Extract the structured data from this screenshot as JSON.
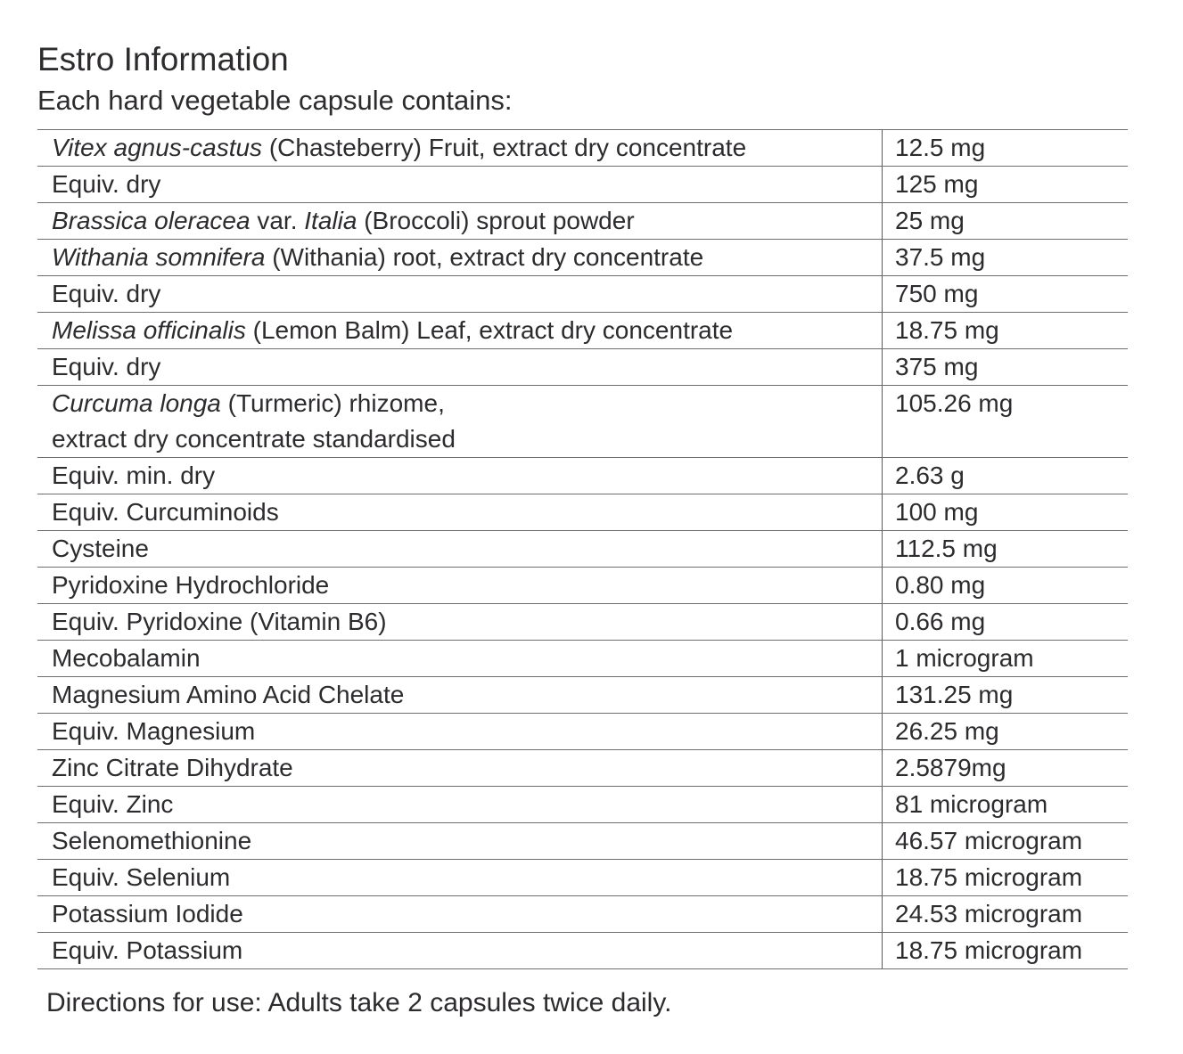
{
  "document": {
    "title": "Estro Information",
    "subtitle": "Each hard vegetable capsule contains:",
    "directions": "Directions for use: Adults take 2 capsules twice daily."
  },
  "colors": {
    "text": "#2d2b2e",
    "rule": "#6e6e6e",
    "background": "#ffffff"
  },
  "table": {
    "rows": [
      {
        "name_parts": [
          {
            "text": "Vitex agnus-castus",
            "italic": true
          },
          {
            "text": " (Chasteberry) Fruit, extract dry concentrate",
            "italic": false
          }
        ],
        "amount": "12.5 mg"
      },
      {
        "name_parts": [
          {
            "text": "Equiv. dry",
            "italic": false
          }
        ],
        "amount": "125 mg"
      },
      {
        "name_parts": [
          {
            "text": "Brassica oleracea",
            "italic": true
          },
          {
            "text": " var. ",
            "italic": false
          },
          {
            "text": "Italia",
            "italic": true
          },
          {
            "text": " (Broccoli) sprout powder",
            "italic": false
          }
        ],
        "amount": "25 mg"
      },
      {
        "name_parts": [
          {
            "text": "Withania somnifera",
            "italic": true
          },
          {
            "text": " (Withania) root, extract dry concentrate",
            "italic": false
          }
        ],
        "amount": "37.5 mg"
      },
      {
        "name_parts": [
          {
            "text": "Equiv. dry",
            "italic": false
          }
        ],
        "amount": "750 mg"
      },
      {
        "name_parts": [
          {
            "text": "Melissa officinalis",
            "italic": true
          },
          {
            "text": " (Lemon Balm) Leaf, extract dry concentrate",
            "italic": false
          }
        ],
        "amount": "18.75 mg"
      },
      {
        "name_parts": [
          {
            "text": "Equiv. dry",
            "italic": false
          }
        ],
        "amount": "375 mg"
      },
      {
        "name_parts": [
          {
            "text": "Curcuma longa",
            "italic": true
          },
          {
            "text": " (Turmeric) rhizome,",
            "italic": false
          },
          {
            "break": true
          },
          {
            "text": "extract dry concentrate standardised",
            "italic": false
          }
        ],
        "amount": "105.26 mg",
        "tall": true
      },
      {
        "name_parts": [
          {
            "text": "Equiv. min. dry",
            "italic": false
          }
        ],
        "amount": "2.63 g"
      },
      {
        "name_parts": [
          {
            "text": "Equiv. Curcuminoids",
            "italic": false
          }
        ],
        "amount": "100 mg"
      },
      {
        "name_parts": [
          {
            "text": "Cysteine",
            "italic": false
          }
        ],
        "amount": "112.5 mg"
      },
      {
        "name_parts": [
          {
            "text": "Pyridoxine Hydrochloride",
            "italic": false
          }
        ],
        "amount": "0.80 mg"
      },
      {
        "name_parts": [
          {
            "text": "Equiv. Pyridoxine (Vitamin B6)",
            "italic": false
          }
        ],
        "amount": "0.66 mg"
      },
      {
        "name_parts": [
          {
            "text": "Mecobalamin",
            "italic": false
          }
        ],
        "amount": "1 microgram"
      },
      {
        "name_parts": [
          {
            "text": "Magnesium Amino Acid Chelate",
            "italic": false
          }
        ],
        "amount": "131.25 mg"
      },
      {
        "name_parts": [
          {
            "text": "Equiv. Magnesium",
            "italic": false
          }
        ],
        "amount": "26.25 mg"
      },
      {
        "name_parts": [
          {
            "text": "Zinc Citrate Dihydrate",
            "italic": false
          }
        ],
        "amount": "2.5879mg"
      },
      {
        "name_parts": [
          {
            "text": "Equiv. Zinc",
            "italic": false
          }
        ],
        "amount": "81 microgram"
      },
      {
        "name_parts": [
          {
            "text": "Selenomethionine",
            "italic": false
          }
        ],
        "amount": "46.57 microgram"
      },
      {
        "name_parts": [
          {
            "text": "Equiv. Selenium",
            "italic": false
          }
        ],
        "amount": "18.75 microgram"
      },
      {
        "name_parts": [
          {
            "text": "Potassium Iodide",
            "italic": false
          }
        ],
        "amount": "24.53 microgram"
      },
      {
        "name_parts": [
          {
            "text": "Equiv. Potassium",
            "italic": false
          }
        ],
        "amount": "18.75 microgram"
      }
    ]
  }
}
